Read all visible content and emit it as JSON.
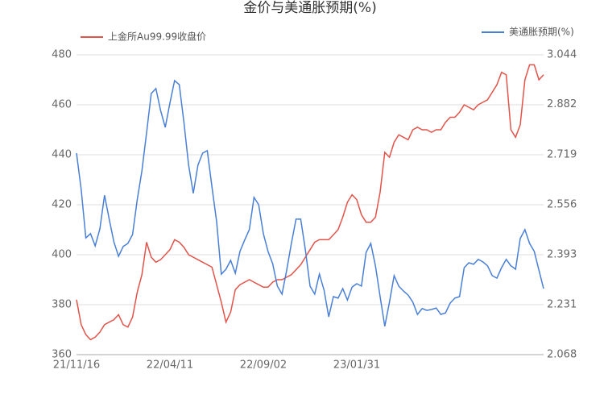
{
  "chart_data": {
    "type": "line",
    "title": "金价与美通胀预期(%)",
    "categories": [
      "21/11/16",
      null,
      null,
      null,
      null,
      null,
      null,
      null,
      null,
      null,
      null,
      null,
      null,
      null,
      null,
      null,
      null,
      null,
      null,
      null,
      "22/04/11",
      null,
      null,
      null,
      null,
      null,
      null,
      null,
      null,
      null,
      null,
      null,
      null,
      null,
      null,
      null,
      null,
      null,
      null,
      null,
      "22/09/02",
      null,
      null,
      null,
      null,
      null,
      null,
      null,
      null,
      null,
      null,
      null,
      null,
      null,
      null,
      null,
      null,
      null,
      null,
      null,
      "23/01/31",
      null,
      null,
      null,
      null,
      null,
      null,
      null,
      null,
      null,
      null,
      null,
      null,
      null,
      null,
      null,
      null,
      null,
      null,
      null,
      null,
      null,
      null,
      null,
      null,
      null,
      null,
      null,
      null,
      null,
      null,
      null,
      null,
      null,
      null,
      null,
      null,
      null,
      null,
      null,
      null
    ],
    "series": [
      {
        "name": "上金所Au99.99收盘价",
        "color": "#e2534a",
        "axis": "y",
        "values": [
          382,
          372,
          368,
          366,
          367,
          369,
          372,
          373,
          374,
          376,
          372,
          371,
          375,
          385,
          392,
          405,
          399,
          397,
          398,
          400,
          402,
          406,
          405,
          403,
          400,
          399,
          398,
          397,
          396,
          395,
          388,
          381,
          373,
          377,
          386,
          388,
          389,
          390,
          389,
          388,
          387,
          387,
          389,
          390,
          390,
          391,
          392,
          394,
          396,
          399,
          402,
          405,
          406,
          406,
          406,
          408,
          410,
          415,
          421,
          424,
          422,
          416,
          413,
          413,
          415,
          425,
          441,
          439,
          445,
          448,
          447,
          446,
          450,
          451,
          450,
          450,
          449,
          450,
          450,
          453,
          455,
          455,
          457,
          460,
          459,
          458,
          460,
          461,
          462,
          465,
          468,
          473,
          472,
          450,
          447,
          452,
          470,
          476,
          476,
          470,
          472
        ]
      },
      {
        "name": "美通胀预期(%)",
        "color": "#4a7fd6",
        "axis": "y2",
        "values": [
          2.724,
          2.606,
          2.448,
          2.462,
          2.422,
          2.477,
          2.587,
          2.509,
          2.435,
          2.388,
          2.42,
          2.43,
          2.459,
          2.572,
          2.666,
          2.79,
          2.918,
          2.934,
          2.863,
          2.808,
          2.887,
          2.96,
          2.947,
          2.824,
          2.685,
          2.593,
          2.685,
          2.724,
          2.732,
          2.614,
          2.501,
          2.33,
          2.346,
          2.375,
          2.333,
          2.404,
          2.441,
          2.475,
          2.58,
          2.556,
          2.462,
          2.404,
          2.364,
          2.291,
          2.265,
          2.343,
          2.43,
          2.509,
          2.509,
          2.409,
          2.291,
          2.265,
          2.33,
          2.278,
          2.191,
          2.257,
          2.252,
          2.283,
          2.246,
          2.288,
          2.299,
          2.291,
          2.401,
          2.43,
          2.357,
          2.257,
          2.16,
          2.239,
          2.325,
          2.291,
          2.275,
          2.262,
          2.239,
          2.199,
          2.218,
          2.212,
          2.215,
          2.22,
          2.199,
          2.204,
          2.236,
          2.252,
          2.257,
          2.351,
          2.367,
          2.362,
          2.378,
          2.37,
          2.357,
          2.325,
          2.317,
          2.351,
          2.378,
          2.357,
          2.346,
          2.446,
          2.475,
          2.43,
          2.404,
          2.343,
          2.283
        ]
      }
    ],
    "ylim": [
      360,
      480
    ],
    "yticks": [
      360,
      380,
      400,
      420,
      440,
      460,
      480
    ],
    "y2lim": [
      2.068,
      3.044
    ],
    "y2ticks": [
      2.068,
      2.231,
      2.393,
      2.556,
      2.719,
      2.882,
      3.044
    ],
    "grid": true
  }
}
